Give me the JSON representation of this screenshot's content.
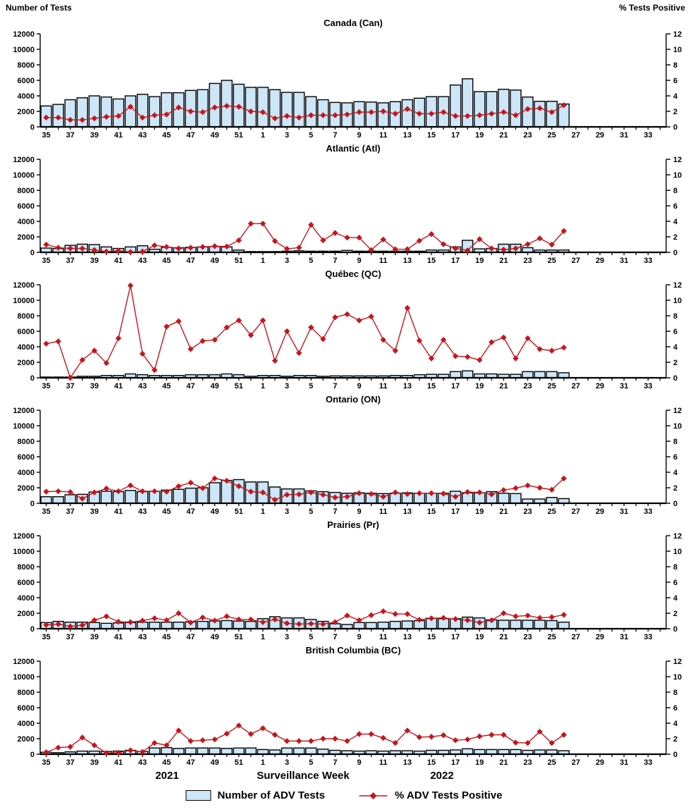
{
  "header": {
    "left_axis_title": "Number of Tests",
    "right_axis_title": "%  Tests Positive"
  },
  "footer": {
    "year_left": "2021",
    "xlabel": "Surveillance Week",
    "year_right": "2022"
  },
  "legend": {
    "bar_label": "Number of ADV Tests",
    "line_label": "% ADV Tests Positive"
  },
  "colors": {
    "bar_fill": "#CDE6F8",
    "bar_border": "#000000",
    "line": "#C4161C",
    "axis": "#000000"
  },
  "chart_data": {
    "type": "bar+line multi-panel",
    "x_weeks": [
      35,
      36,
      37,
      38,
      39,
      40,
      41,
      42,
      43,
      44,
      45,
      46,
      47,
      48,
      49,
      50,
      51,
      52,
      1,
      2,
      3,
      4,
      5,
      6,
      7,
      8,
      9,
      10,
      11,
      12,
      13,
      14,
      15,
      16,
      17,
      18,
      19,
      20,
      21,
      22,
      23,
      24,
      25,
      26,
      27,
      28,
      29,
      30,
      31,
      32,
      33,
      34
    ],
    "x_tick_labels_every": "odd weeks only: 35,37,...,51,1,3,...,33",
    "weeks_with_data": 44,
    "left_ylabel": "Number of Tests",
    "right_ylabel": "% Tests Positive",
    "left_ylim": [
      0,
      12000
    ],
    "right_ylim": [
      0,
      12
    ],
    "left_ticks": [
      0,
      2000,
      4000,
      6000,
      8000,
      10000,
      12000
    ],
    "right_ticks": [
      0,
      2,
      4,
      6,
      8,
      10,
      12
    ],
    "grid": false,
    "legend_position": "bottom",
    "panels": [
      {
        "title": "Canada (Can)",
        "bars": [
          2700,
          2900,
          3500,
          3750,
          4000,
          3850,
          3600,
          4000,
          4200,
          3900,
          4400,
          4400,
          4700,
          4800,
          5600,
          6000,
          5500,
          5100,
          5100,
          4800,
          4450,
          4450,
          3900,
          3500,
          3150,
          3100,
          3250,
          3200,
          3100,
          3250,
          3500,
          3700,
          3900,
          3900,
          5400,
          6200,
          4550,
          4550,
          4850,
          4750,
          3850,
          3300,
          3300,
          2950
        ],
        "line_pct": [
          1.2,
          1.2,
          0.9,
          0.9,
          1.1,
          1.3,
          1.4,
          2.6,
          1.2,
          1.5,
          1.6,
          2.5,
          2.0,
          1.9,
          2.5,
          2.7,
          2.6,
          2.0,
          1.9,
          1.1,
          1.4,
          1.2,
          1.5,
          1.5,
          1.5,
          1.6,
          1.9,
          1.9,
          2.0,
          1.7,
          2.3,
          1.7,
          1.7,
          1.9,
          1.4,
          1.4,
          1.5,
          1.7,
          1.9,
          1.5,
          2.3,
          2.4,
          1.9,
          2.8
        ]
      },
      {
        "title": "Atlantic (Atl)",
        "bars": [
          550,
          500,
          900,
          1050,
          1000,
          700,
          500,
          700,
          850,
          400,
          650,
          600,
          650,
          700,
          750,
          700,
          300,
          100,
          100,
          100,
          150,
          200,
          150,
          150,
          150,
          250,
          150,
          150,
          150,
          150,
          150,
          150,
          300,
          300,
          700,
          1550,
          450,
          500,
          1050,
          1050,
          600,
          300,
          300,
          300
        ],
        "line_pct": [
          1.0,
          0.6,
          0.5,
          0.5,
          0.3,
          0.1,
          0.2,
          0.05,
          0.1,
          0.9,
          0.7,
          0.5,
          0.6,
          0.7,
          0.8,
          0.75,
          1.55,
          3.7,
          3.7,
          1.45,
          0.45,
          0.6,
          3.55,
          1.55,
          2.5,
          1.9,
          1.9,
          0.3,
          1.65,
          0.4,
          0.4,
          1.5,
          2.35,
          1.05,
          0.5,
          0.25,
          1.7,
          0.5,
          0.35,
          0.5,
          1.05,
          1.8,
          1.0,
          2.75
        ]
      },
      {
        "title": "Québec (QC)",
        "bars": [
          100,
          100,
          100,
          200,
          200,
          300,
          300,
          500,
          400,
          300,
          300,
          300,
          400,
          400,
          400,
          500,
          400,
          200,
          300,
          300,
          200,
          300,
          300,
          200,
          250,
          250,
          250,
          250,
          250,
          300,
          300,
          400,
          450,
          450,
          800,
          900,
          500,
          500,
          450,
          450,
          800,
          800,
          800,
          650
        ],
        "line_pct": [
          4.4,
          4.7,
          0.0,
          2.3,
          3.5,
          1.9,
          5.1,
          11.9,
          3.1,
          1.0,
          6.6,
          7.3,
          3.7,
          4.75,
          4.9,
          6.5,
          7.4,
          5.5,
          7.4,
          2.2,
          6.0,
          3.2,
          6.5,
          5.0,
          7.8,
          8.2,
          7.4,
          7.9,
          4.9,
          3.5,
          9.0,
          4.8,
          2.5,
          4.9,
          2.8,
          2.7,
          2.3,
          4.6,
          5.2,
          2.5,
          5.1,
          3.7,
          3.5,
          3.9
        ]
      },
      {
        "title": "Ontario (ON)",
        "bars": [
          850,
          850,
          1100,
          1150,
          1450,
          1550,
          1500,
          1650,
          1500,
          1550,
          1700,
          1800,
          1950,
          2000,
          2650,
          2950,
          3050,
          2750,
          2750,
          2100,
          1850,
          1850,
          1600,
          1500,
          1400,
          1300,
          1350,
          1300,
          1250,
          1300,
          1350,
          1300,
          1300,
          1300,
          1550,
          1350,
          1350,
          1500,
          1300,
          1250,
          550,
          550,
          750,
          600
        ],
        "line_pct": [
          1.5,
          1.55,
          1.45,
          0.6,
          1.4,
          1.9,
          1.55,
          2.3,
          1.55,
          1.55,
          1.5,
          2.2,
          2.65,
          1.95,
          3.2,
          2.9,
          2.2,
          1.5,
          1.4,
          0.45,
          1.1,
          1.15,
          1.4,
          1.1,
          0.75,
          0.85,
          1.3,
          1.2,
          0.85,
          1.4,
          1.2,
          1.3,
          1.3,
          1.25,
          0.85,
          1.45,
          1.4,
          1.15,
          1.7,
          1.95,
          2.3,
          2.0,
          1.75,
          3.2
        ]
      },
      {
        "title": "Prairies (Pr)",
        "bars": [
          800,
          950,
          850,
          850,
          800,
          700,
          750,
          800,
          850,
          850,
          850,
          850,
          900,
          950,
          1000,
          1050,
          1000,
          950,
          1300,
          1550,
          1400,
          1400,
          1200,
          950,
          650,
          550,
          800,
          800,
          850,
          950,
          1000,
          1050,
          1350,
          1300,
          1300,
          1500,
          1400,
          1150,
          1100,
          1100,
          1100,
          1100,
          1050,
          850
        ],
        "line_pct": [
          0.5,
          0.6,
          0.3,
          0.45,
          1.1,
          1.6,
          0.9,
          0.85,
          1.05,
          1.35,
          1.1,
          2.0,
          0.8,
          1.45,
          1.05,
          1.6,
          1.2,
          1.2,
          0.85,
          1.2,
          0.7,
          0.6,
          0.65,
          0.6,
          0.85,
          1.7,
          1.1,
          1.75,
          2.25,
          1.9,
          1.9,
          1.15,
          1.35,
          1.4,
          1.25,
          1.1,
          0.8,
          1.1,
          2.0,
          1.6,
          1.7,
          1.4,
          1.5,
          1.8
        ]
      },
      {
        "title": "British Columbia (BC)",
        "bars": [
          250,
          200,
          300,
          400,
          400,
          350,
          400,
          500,
          350,
          800,
          850,
          750,
          800,
          800,
          800,
          750,
          800,
          800,
          600,
          550,
          800,
          800,
          800,
          650,
          500,
          450,
          400,
          450,
          400,
          450,
          450,
          400,
          500,
          500,
          550,
          700,
          600,
          600,
          600,
          600,
          500,
          550,
          550,
          450
        ],
        "line_pct": [
          0.25,
          0.85,
          0.95,
          2.15,
          1.15,
          0.15,
          0.2,
          0.5,
          0.3,
          1.45,
          1.15,
          3.05,
          1.7,
          1.8,
          1.9,
          2.65,
          3.7,
          2.6,
          3.35,
          2.5,
          1.7,
          1.7,
          1.7,
          2.0,
          2.0,
          1.7,
          2.6,
          2.6,
          2.1,
          1.45,
          3.05,
          2.2,
          2.25,
          2.45,
          1.8,
          1.9,
          2.3,
          2.5,
          2.5,
          1.5,
          1.45,
          2.9,
          1.45,
          2.5
        ]
      }
    ]
  }
}
